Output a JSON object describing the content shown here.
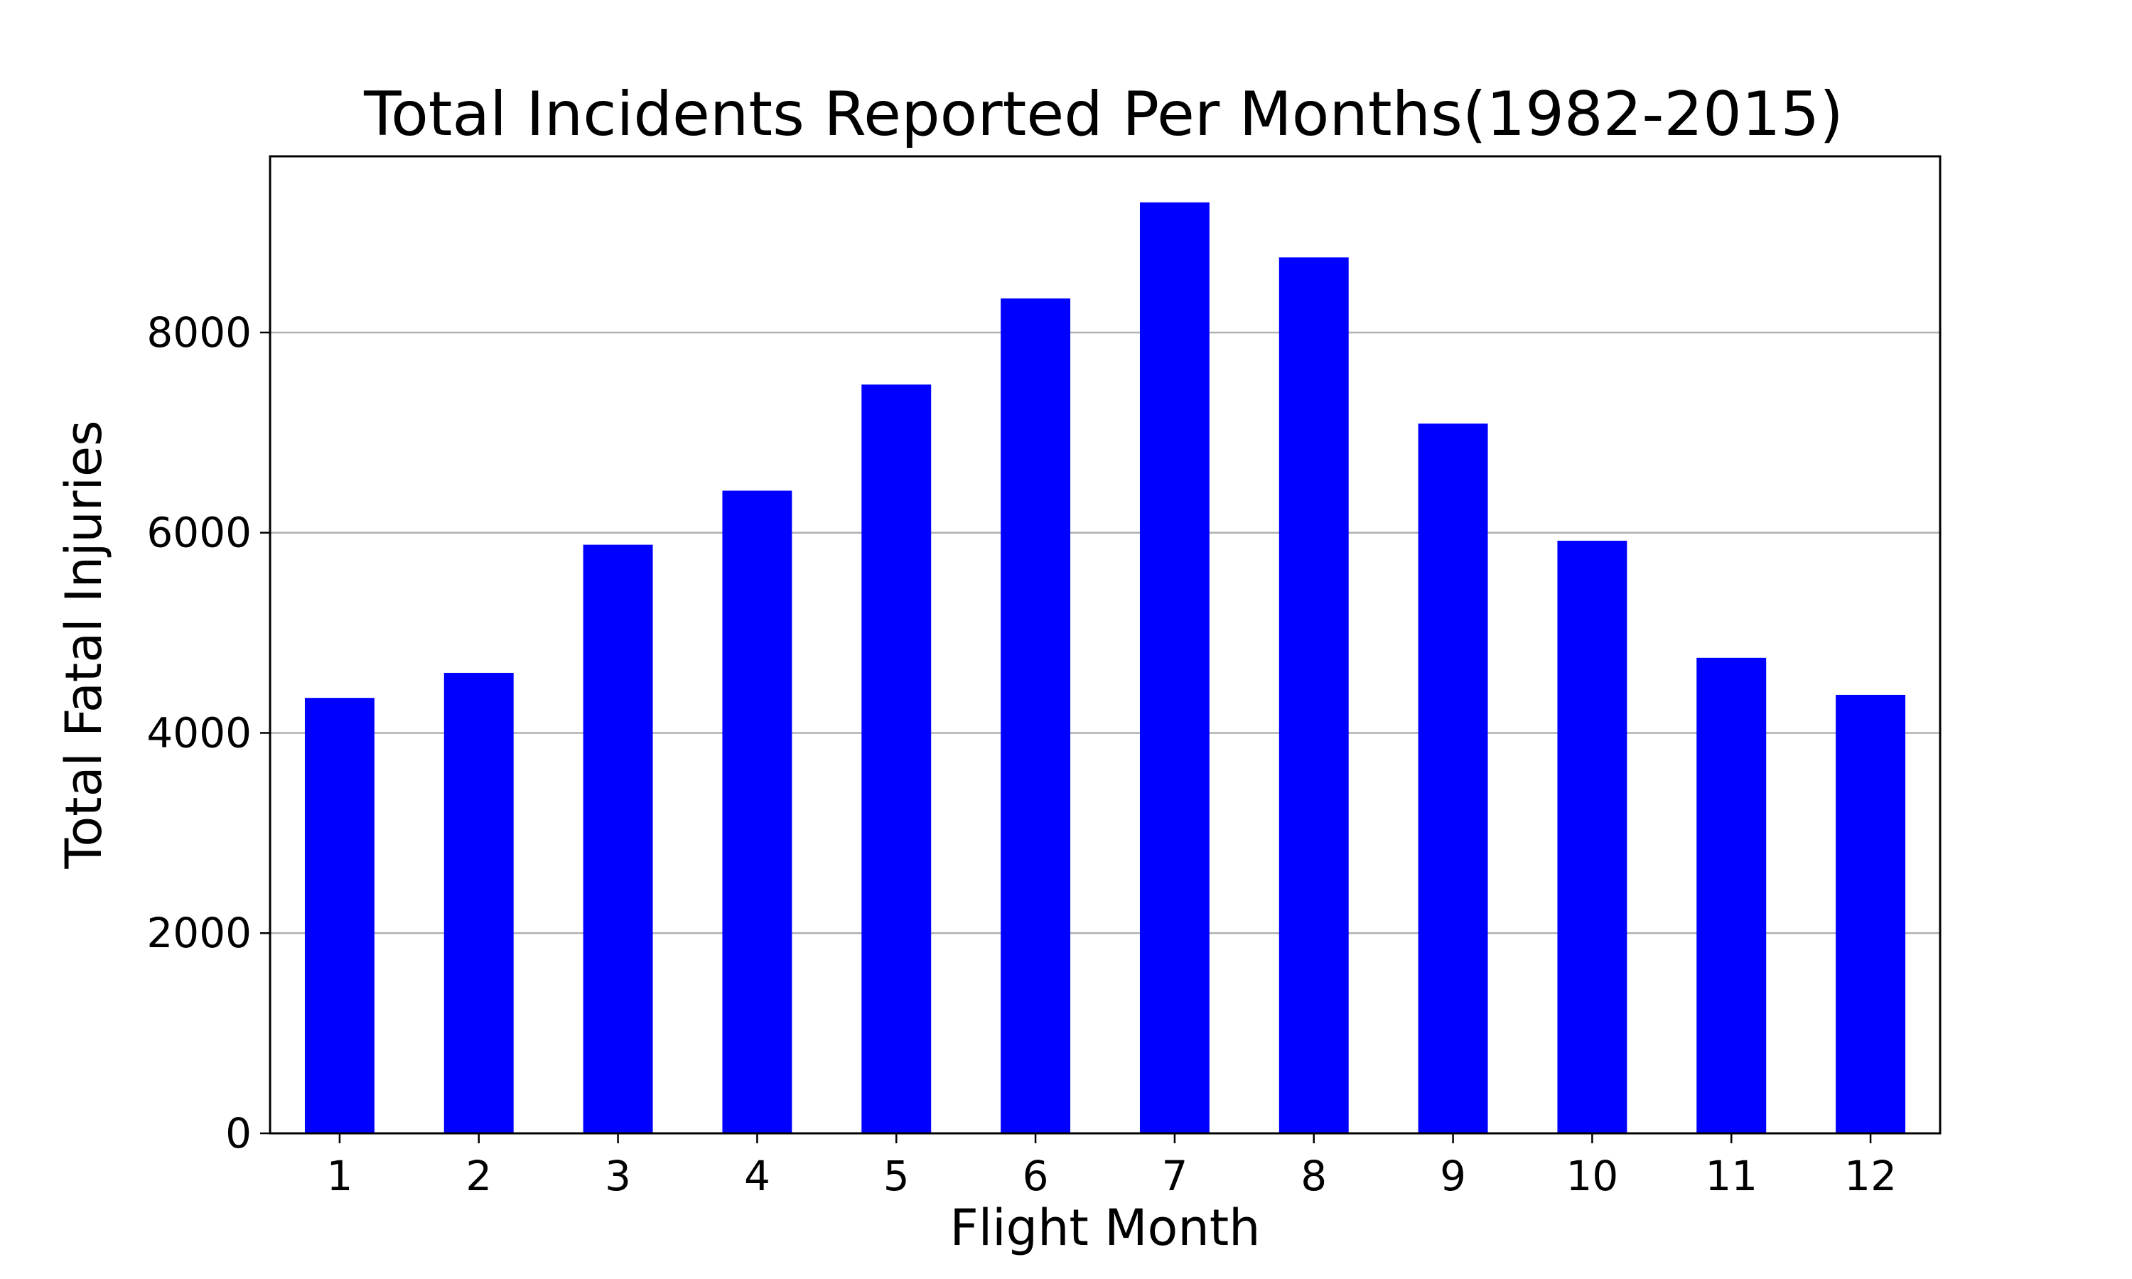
{
  "chart_data": {
    "type": "bar",
    "title": "Total Incidents Reported Per Months(1982-2015)",
    "xlabel": "Flight Month",
    "ylabel": "Total Fatal Injuries",
    "categories": [
      "1",
      "2",
      "3",
      "4",
      "5",
      "6",
      "7",
      "8",
      "9",
      "10",
      "11",
      "12"
    ],
    "values": [
      4350,
      4600,
      5880,
      6420,
      7480,
      8340,
      9300,
      8750,
      7090,
      5920,
      4750,
      4380
    ],
    "ylim": [
      0,
      9760
    ],
    "yticks": [
      0,
      2000,
      4000,
      6000,
      8000
    ],
    "ytick_labels": [
      "0",
      "2000",
      "4000",
      "6000",
      "8000"
    ],
    "grid": "y",
    "legend": "none",
    "bar_color": "#0000ff"
  }
}
